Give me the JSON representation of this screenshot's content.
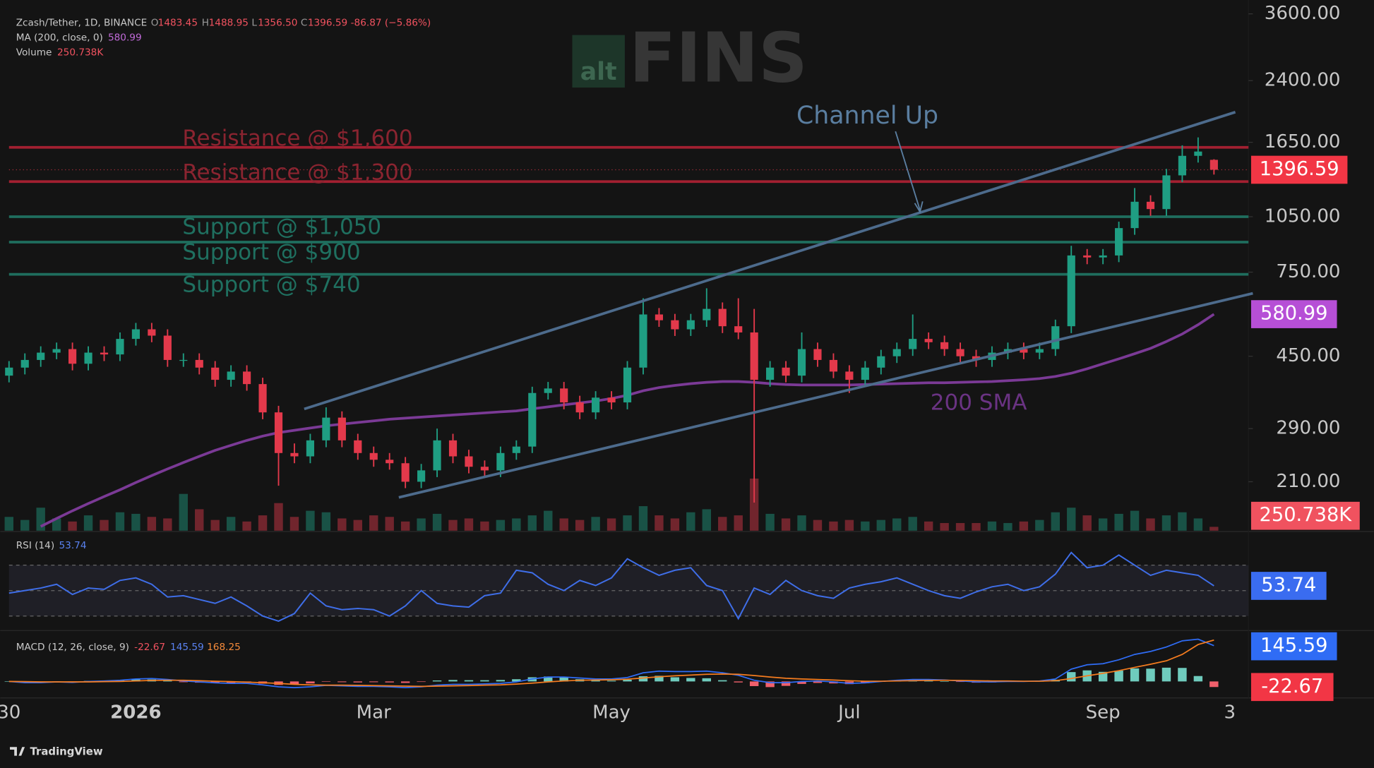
{
  "chart_data": {
    "type": "candlestick",
    "header": {
      "symbol": "Zcash/Tether, 1D, BINANCE",
      "open_label": "O",
      "open": "1483.45",
      "high_label": "H",
      "high": "1488.95",
      "low_label": "L",
      "low": "1356.50",
      "close_label": "C",
      "close": "1396.59",
      "change": "-86.87 (−5.86%)"
    },
    "ma_legend": {
      "name": "MA (200, close, 0)",
      "value": "580.99"
    },
    "volume_legend": {
      "name": "Volume",
      "value": "250.738K"
    },
    "rsi_legend": {
      "name": "RSI (14)",
      "value": "53.74"
    },
    "macd_legend": {
      "name": "MACD (12, 26, close, 9)",
      "histogram": "-22.67",
      "macd": "145.59",
      "signal": "168.25"
    },
    "watermark": {
      "prefix": "alt",
      "name": "FINS"
    },
    "footer": "TradingView",
    "annotations": {
      "channel": "Channel Up",
      "sma": "200 SMA"
    },
    "log_scale": true,
    "ylim": [
      156,
      3916
    ],
    "yticks": [
      {
        "value": 3600,
        "label": "3600.00"
      },
      {
        "value": 2400,
        "label": "2400.00"
      },
      {
        "value": 1650,
        "label": "1650.00"
      },
      {
        "value": 1050,
        "label": "1050.00"
      },
      {
        "value": 750,
        "label": "750.00"
      },
      {
        "value": 450,
        "label": "450.00"
      },
      {
        "value": 290,
        "label": "290.00"
      },
      {
        "value": 210,
        "label": "210.00"
      }
    ],
    "categories": [
      "30",
      null,
      null,
      null,
      null,
      null,
      null,
      null,
      "2026",
      null,
      null,
      null,
      null,
      null,
      null,
      null,
      null,
      null,
      null,
      null,
      null,
      null,
      null,
      "Mar",
      null,
      null,
      null,
      null,
      null,
      null,
      null,
      null,
      null,
      null,
      null,
      null,
      null,
      null,
      "May",
      null,
      null,
      null,
      null,
      null,
      null,
      null,
      null,
      null,
      null,
      null,
      null,
      null,
      null,
      "Jul",
      null,
      null,
      null,
      null,
      null,
      null,
      null,
      null,
      null,
      null,
      null,
      null,
      null,
      null,
      null,
      "Sep",
      null,
      null,
      null,
      null,
      null,
      null,
      null,
      "3"
    ],
    "colors": {
      "up": "#1f9e83",
      "down": "#e3394b"
    },
    "candles": [
      [
        400,
        437,
        384,
        420
      ],
      [
        420,
        458,
        403,
        440
      ],
      [
        440,
        478,
        422,
        460
      ],
      [
        460,
        489,
        442,
        470
      ],
      [
        470,
        489,
        413,
        430
      ],
      [
        430,
        478,
        413,
        460
      ],
      [
        460,
        478,
        437,
        455
      ],
      [
        455,
        520,
        437,
        500
      ],
      [
        500,
        551,
        480,
        530
      ],
      [
        530,
        551,
        490,
        510
      ],
      [
        510,
        530,
        422,
        440
      ],
      [
        440,
        458,
        422,
        440
      ],
      [
        440,
        458,
        403,
        420
      ],
      [
        420,
        437,
        374,
        390
      ],
      [
        390,
        426,
        374,
        410
      ],
      [
        410,
        426,
        365,
        380
      ],
      [
        380,
        395,
        307,
        320
      ],
      [
        320,
        333,
        205,
        250
      ],
      [
        250,
        265,
        235,
        245
      ],
      [
        245,
        281,
        235,
        270
      ],
      [
        270,
        330,
        259,
        310
      ],
      [
        310,
        322,
        259,
        270
      ],
      [
        270,
        281,
        240,
        250
      ],
      [
        250,
        260,
        230,
        240
      ],
      [
        240,
        250,
        226,
        235
      ],
      [
        235,
        244,
        202,
        210
      ],
      [
        210,
        234,
        202,
        225
      ],
      [
        225,
        290,
        216,
        270
      ],
      [
        270,
        281,
        235,
        245
      ],
      [
        245,
        255,
        221,
        230
      ],
      [
        230,
        239,
        216,
        225
      ],
      [
        225,
        260,
        216,
        250
      ],
      [
        250,
        270,
        240,
        260
      ],
      [
        260,
        374,
        250,
        360
      ],
      [
        360,
        385,
        346,
        370
      ],
      [
        370,
        385,
        326,
        340
      ],
      [
        340,
        354,
        307,
        320
      ],
      [
        320,
        364,
        307,
        350
      ],
      [
        350,
        364,
        326,
        340
      ],
      [
        340,
        437,
        326,
        420
      ],
      [
        420,
        640,
        403,
        580
      ],
      [
        580,
        603,
        538,
        560
      ],
      [
        560,
        582,
        509,
        530
      ],
      [
        530,
        582,
        509,
        560
      ],
      [
        560,
        680,
        538,
        600
      ],
      [
        600,
        624,
        518,
        540
      ],
      [
        540,
        640,
        499,
        520
      ],
      [
        520,
        600,
        185,
        390
      ],
      [
        390,
        437,
        374,
        420
      ],
      [
        420,
        437,
        384,
        400
      ],
      [
        400,
        520,
        384,
        470
      ],
      [
        470,
        489,
        422,
        440
      ],
      [
        440,
        458,
        394,
        410
      ],
      [
        410,
        426,
        360,
        390
      ],
      [
        390,
        437,
        374,
        420
      ],
      [
        420,
        468,
        403,
        450
      ],
      [
        450,
        489,
        432,
        470
      ],
      [
        470,
        580,
        451,
        500
      ],
      [
        500,
        520,
        470,
        490
      ],
      [
        490,
        510,
        451,
        470
      ],
      [
        470,
        489,
        432,
        450
      ],
      [
        450,
        468,
        422,
        440
      ],
      [
        440,
        478,
        422,
        460
      ],
      [
        460,
        489,
        442,
        470
      ],
      [
        470,
        489,
        442,
        460
      ],
      [
        460,
        489,
        442,
        470
      ],
      [
        470,
        562,
        451,
        540
      ],
      [
        540,
        880,
        518,
        830
      ],
      [
        830,
        863,
        787,
        820
      ],
      [
        820,
        863,
        787,
        830
      ],
      [
        830,
        1019,
        797,
        980
      ],
      [
        980,
        1250,
        941,
        1150
      ],
      [
        1150,
        1196,
        1056,
        1100
      ],
      [
        1100,
        1404,
        1056,
        1350
      ],
      [
        1350,
        1620,
        1296,
        1520
      ],
      [
        1520,
        1700,
        1459,
        1560
      ],
      [
        1483.45,
        1488.95,
        1356.5,
        1396.59
      ],
      null
    ],
    "ma": {
      "color": "#7b3a96",
      "values": [
        null,
        null,
        160,
        168,
        176,
        184,
        192,
        200,
        209,
        218,
        227,
        236,
        245,
        254,
        262,
        270,
        277,
        283,
        287,
        291,
        295,
        298,
        301,
        304,
        307,
        309,
        311,
        313,
        315,
        317,
        319,
        321,
        323,
        327,
        331,
        335,
        339,
        343,
        348,
        355,
        365,
        372,
        377,
        381,
        384,
        386,
        386,
        384,
        381,
        379,
        378,
        378,
        378,
        378,
        379,
        380,
        381,
        382,
        383,
        383,
        384,
        385,
        386,
        388,
        390,
        393,
        398,
        406,
        417,
        430,
        443,
        457,
        472,
        492,
        515,
        545,
        580.99,
        null
      ]
    },
    "volume": {
      "ylim": [
        0,
        4000000
      ],
      "values": [
        900000,
        700000,
        1500000,
        800000,
        600000,
        1000000,
        700000,
        1200000,
        1100000,
        900000,
        800000,
        2400000,
        1400000,
        700000,
        900000,
        600000,
        1000000,
        1800000,
        900000,
        1300000,
        1200000,
        800000,
        700000,
        1000000,
        900000,
        600000,
        800000,
        1100000,
        700000,
        800000,
        600000,
        700000,
        800000,
        1000000,
        1300000,
        800000,
        700000,
        900000,
        800000,
        1000000,
        1600000,
        1000000,
        800000,
        1200000,
        1400000,
        900000,
        1000000,
        3400000,
        1100000,
        800000,
        1000000,
        700000,
        600000,
        700000,
        600000,
        700000,
        800000,
        900000,
        600000,
        500000,
        500000,
        500000,
        600000,
        500000,
        600000,
        700000,
        1200000,
        1500000,
        1000000,
        800000,
        1100000,
        1300000,
        800000,
        1000000,
        1200000,
        800000,
        250738,
        null
      ]
    },
    "resistance": [
      {
        "label": "Resistance @ $1,600",
        "value": 1600
      },
      {
        "label": "Resistance @ $1,300",
        "value": 1300
      }
    ],
    "support": [
      {
        "label": "Support @ $1,050",
        "value": 1050
      },
      {
        "label": "Support @ $900",
        "value": 900
      },
      {
        "label": "Support @ $740",
        "value": 740
      }
    ],
    "rsi": {
      "color": "#3f6ee8",
      "ylim": [
        20,
        93
      ],
      "bands": [
        70,
        50,
        30
      ],
      "values": [
        48,
        50,
        52,
        55,
        47,
        52,
        51,
        58,
        60,
        55,
        45,
        46,
        43,
        40,
        45,
        38,
        30,
        26,
        32,
        48,
        38,
        35,
        36,
        35,
        30,
        38,
        50,
        40,
        38,
        37,
        46,
        48,
        66,
        64,
        55,
        50,
        58,
        54,
        60,
        75,
        68,
        62,
        66,
        68,
        54,
        50,
        28,
        52,
        47,
        58,
        50,
        46,
        44,
        52,
        55,
        57,
        60,
        55,
        50,
        46,
        44,
        49,
        53,
        55,
        50,
        53,
        63,
        80,
        68,
        70,
        78,
        70,
        62,
        66,
        64,
        62,
        53.74,
        null
      ]
    },
    "macd": {
      "ylim": [
        -60,
        200
      ],
      "macd_color": "#2f6cf5",
      "signal_color": "#f57c1f",
      "hist_up": "#6fcbbd",
      "hist_down": "#f0606c",
      "macd": [
        0,
        -5,
        -5,
        -2,
        -4,
        0,
        2,
        5,
        10,
        12,
        8,
        2,
        -2,
        -6,
        -8,
        -8,
        -14,
        -22,
        -25,
        -22,
        -16,
        -18,
        -20,
        -20,
        -22,
        -25,
        -22,
        -15,
        -12,
        -12,
        -10,
        -8,
        -2,
        10,
        18,
        18,
        14,
        10,
        10,
        16,
        35,
        42,
        40,
        40,
        42,
        35,
        25,
        5,
        -5,
        -5,
        0,
        2,
        -2,
        -8,
        -6,
        0,
        5,
        8,
        8,
        6,
        2,
        -2,
        -2,
        0,
        0,
        2,
        10,
        50,
        68,
        72,
        88,
        110,
        122,
        140,
        165,
        172,
        145.59,
        null
      ],
      "signal": [
        0,
        -1,
        -2,
        -2,
        -2,
        -2,
        -1,
        0,
        2,
        4,
        5,
        5,
        3,
        1,
        -1,
        -3,
        -5,
        -8,
        -12,
        -14,
        -15,
        -15,
        -16,
        -17,
        -18,
        -19,
        -20,
        -19,
        -18,
        -17,
        -15,
        -14,
        -11,
        -7,
        -2,
        2,
        5,
        6,
        7,
        9,
        14,
        19,
        23,
        26,
        29,
        30,
        29,
        24,
        18,
        13,
        10,
        8,
        6,
        3,
        1,
        1,
        2,
        3,
        4,
        5,
        4,
        3,
        2,
        2,
        1,
        1,
        3,
        12,
        23,
        33,
        44,
        57,
        70,
        84,
        110,
        150,
        168.25,
        null
      ],
      "histogram": [
        0,
        -4,
        -3,
        0,
        -2,
        2,
        3,
        5,
        8,
        8,
        3,
        -3,
        -5,
        -7,
        -7,
        -5,
        -9,
        -14,
        -13,
        -8,
        -1,
        -3,
        -4,
        -3,
        -4,
        -6,
        -2,
        4,
        6,
        5,
        5,
        6,
        9,
        17,
        20,
        16,
        9,
        4,
        3,
        7,
        21,
        23,
        17,
        14,
        13,
        5,
        -4,
        -19,
        -23,
        -18,
        -10,
        -6,
        -8,
        -11,
        -7,
        -1,
        3,
        5,
        4,
        1,
        -2,
        -5,
        -4,
        -2,
        -1,
        1,
        7,
        38,
        45,
        39,
        44,
        53,
        52,
        56,
        55,
        22,
        -22.67,
        null
      ]
    }
  }
}
